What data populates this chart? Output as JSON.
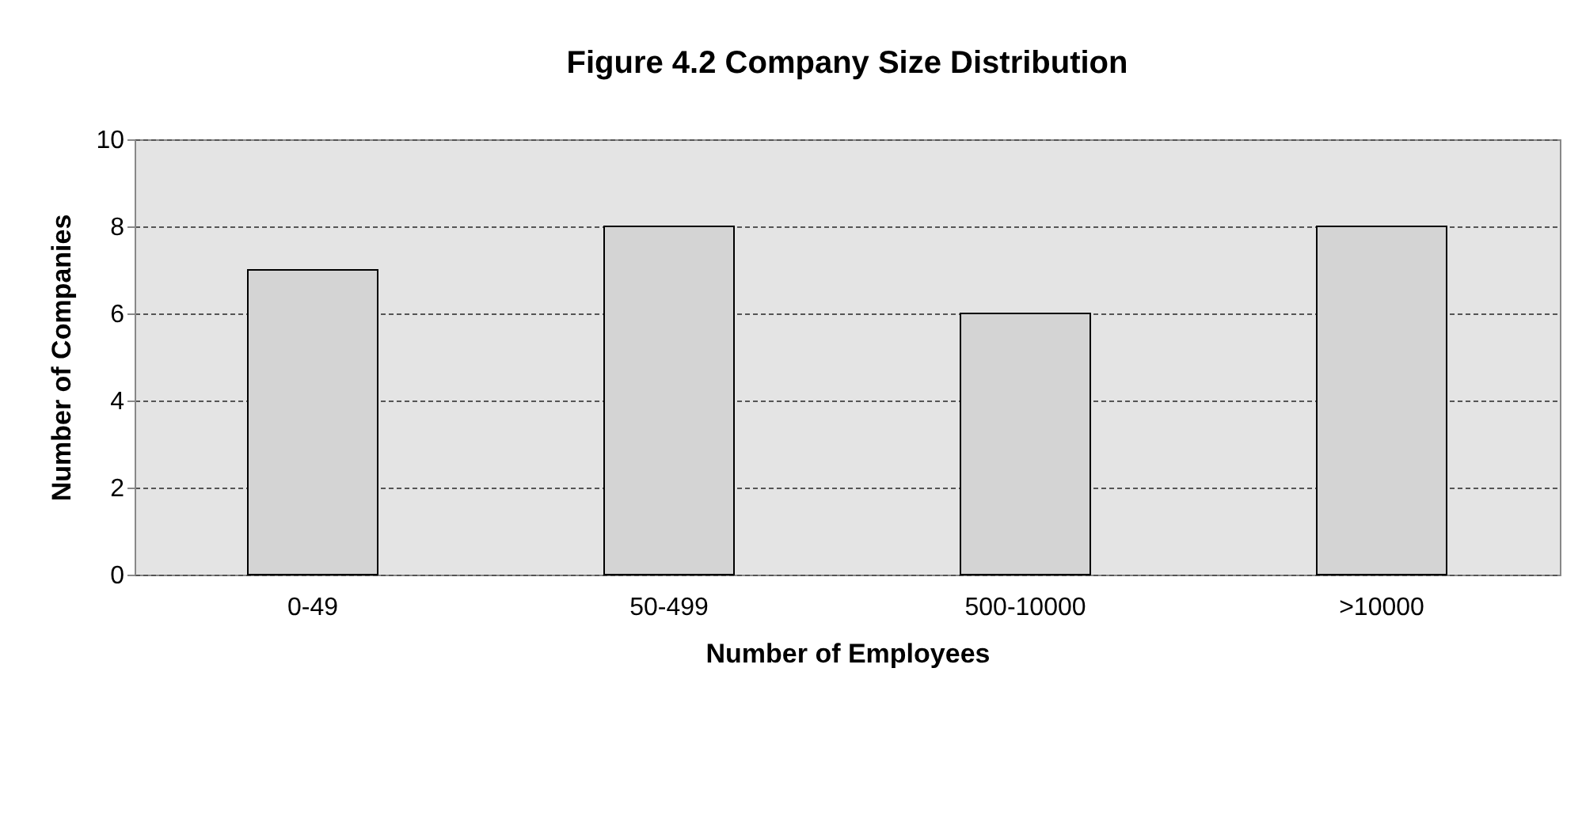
{
  "chart_data": {
    "type": "bar",
    "title": "Figure 4.2 Company Size Distribution",
    "xlabel": "Number of Employees",
    "ylabel": "Number of Companies",
    "categories": [
      "0-49",
      "50-499",
      "500-10000",
      ">10000"
    ],
    "values": [
      7,
      8,
      6,
      8
    ],
    "color": "#d4d4d4",
    "ylim": [
      0,
      10
    ],
    "yticks": [
      0,
      2,
      4,
      6,
      8,
      10
    ],
    "grid": "y"
  }
}
